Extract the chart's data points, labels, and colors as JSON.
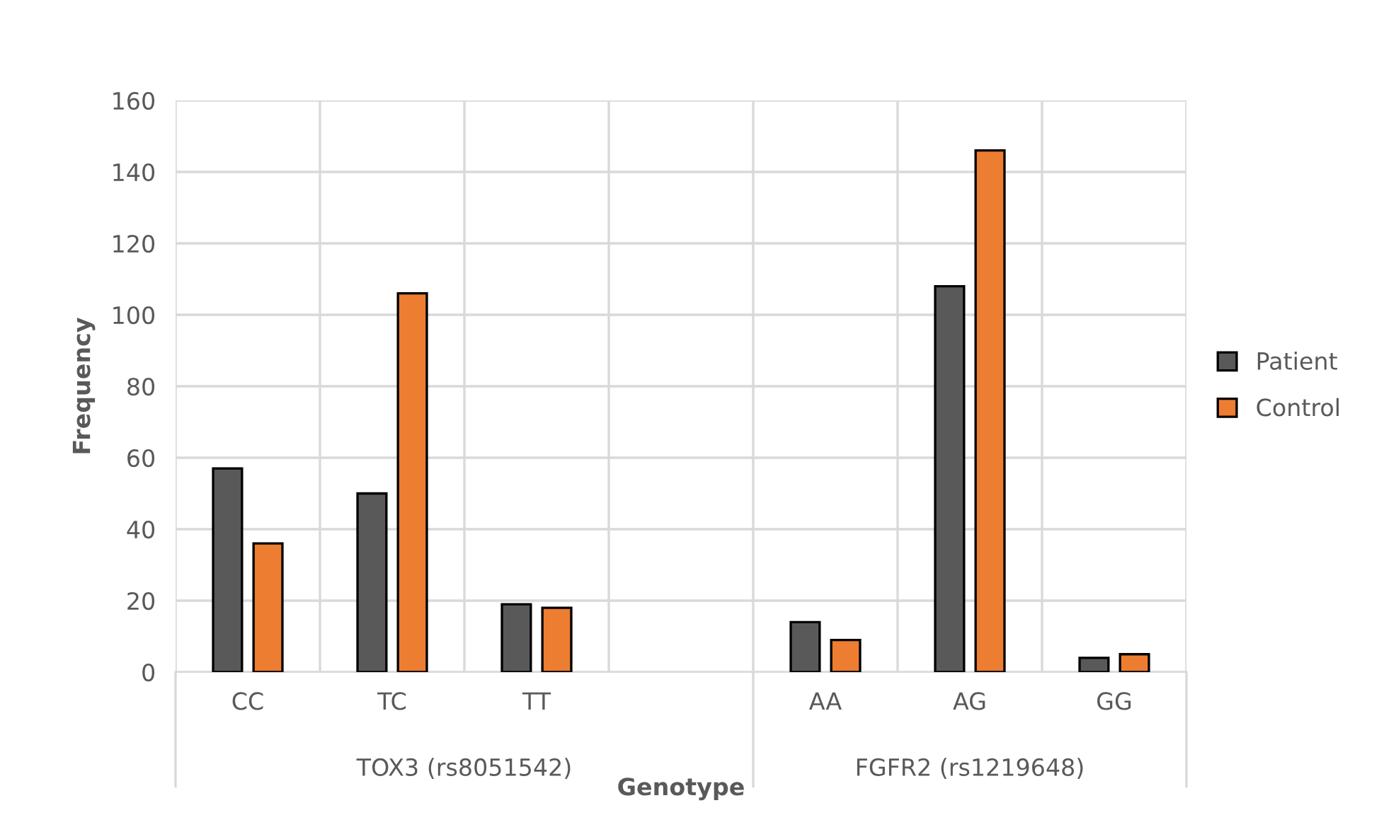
{
  "chart_data": {
    "type": "bar",
    "xlabel": "Genotype",
    "ylabel": "Frequency",
    "categories": [
      "CC",
      "TC",
      "TT",
      null,
      "AA",
      "AG",
      "GG"
    ],
    "series": [
      {
        "name": "Patient",
        "color": "#595959",
        "values": [
          57,
          50,
          19,
          null,
          14,
          108,
          4
        ]
      },
      {
        "name": "Control",
        "color": "#ed7d31",
        "values": [
          36,
          106,
          18,
          null,
          9,
          146,
          5
        ]
      }
    ],
    "annotations": [
      "TOX3 (rs8051542)",
      "FGFR2 (rs1219648)"
    ],
    "ylim": [
      0,
      160
    ],
    "yticks": [
      0,
      20,
      40,
      60,
      80,
      100,
      120,
      140,
      160
    ],
    "grid": true,
    "legend": "right"
  }
}
